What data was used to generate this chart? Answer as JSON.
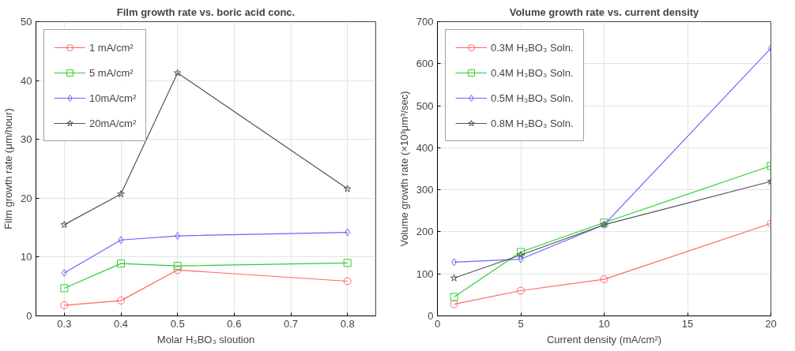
{
  "chart_data": [
    {
      "type": "line",
      "title": "Film growth rate vs. boric acid conc.",
      "xlabel": "Molar H₃BO₃ sloution",
      "ylabel": "Film growth rate (μm/hour)",
      "xlim": [
        0.25,
        0.85
      ],
      "xticks": [
        0.3,
        0.4,
        0.5,
        0.6,
        0.7,
        0.8
      ],
      "ylim": [
        0,
        50
      ],
      "yticks": [
        0,
        10,
        20,
        30,
        40,
        50
      ],
      "grid": true,
      "legend": "top left",
      "x": [
        0.3,
        0.4,
        0.5,
        0.8
      ],
      "series": [
        {
          "name": "1 mA/cm²",
          "color": "#ff6666",
          "marker": "circle",
          "values": [
            1.8,
            2.6,
            7.8,
            5.9
          ]
        },
        {
          "name": "5 mA/cm²",
          "color": "#33cc33",
          "marker": "square",
          "values": [
            4.7,
            8.9,
            8.5,
            9.0
          ]
        },
        {
          "name": "10mA/cm²",
          "color": "#6666ff",
          "marker": "diamond",
          "values": [
            7.3,
            12.9,
            13.6,
            14.2
          ]
        },
        {
          "name": "20mA/cm²",
          "color": "#555555",
          "marker": "star",
          "values": [
            15.5,
            20.7,
            41.3,
            21.6
          ]
        }
      ]
    },
    {
      "type": "line",
      "title": "Volume growth rate vs. current density",
      "xlabel": "Current density (mA/cm²)",
      "ylabel": "Volume growth rate (×10³μm³/sec)",
      "xlim": [
        0,
        20
      ],
      "xticks": [
        0,
        5,
        10,
        15,
        20
      ],
      "ylim": [
        0,
        700
      ],
      "yticks": [
        0,
        100,
        200,
        300,
        400,
        500,
        600,
        700
      ],
      "grid": true,
      "legend": "top left",
      "x": [
        1,
        5,
        10,
        20
      ],
      "series": [
        {
          "name": "0.3M H₃BO₃ Soln.",
          "color": "#ff6666",
          "marker": "circle",
          "values": [
            28,
            60,
            87,
            220
          ]
        },
        {
          "name": "0.4M H₃BO₃ Soln.",
          "color": "#33cc33",
          "marker": "square",
          "values": [
            45,
            152,
            222,
            357
          ]
        },
        {
          "name": "0.5M H₃BO₃ Soln.",
          "color": "#6666ff",
          "marker": "diamond",
          "values": [
            128,
            135,
            217,
            637
          ]
        },
        {
          "name": "0.8M H₃BO₃ Soln.",
          "color": "#555555",
          "marker": "star",
          "values": [
            90,
            145,
            217,
            320
          ]
        }
      ]
    }
  ]
}
